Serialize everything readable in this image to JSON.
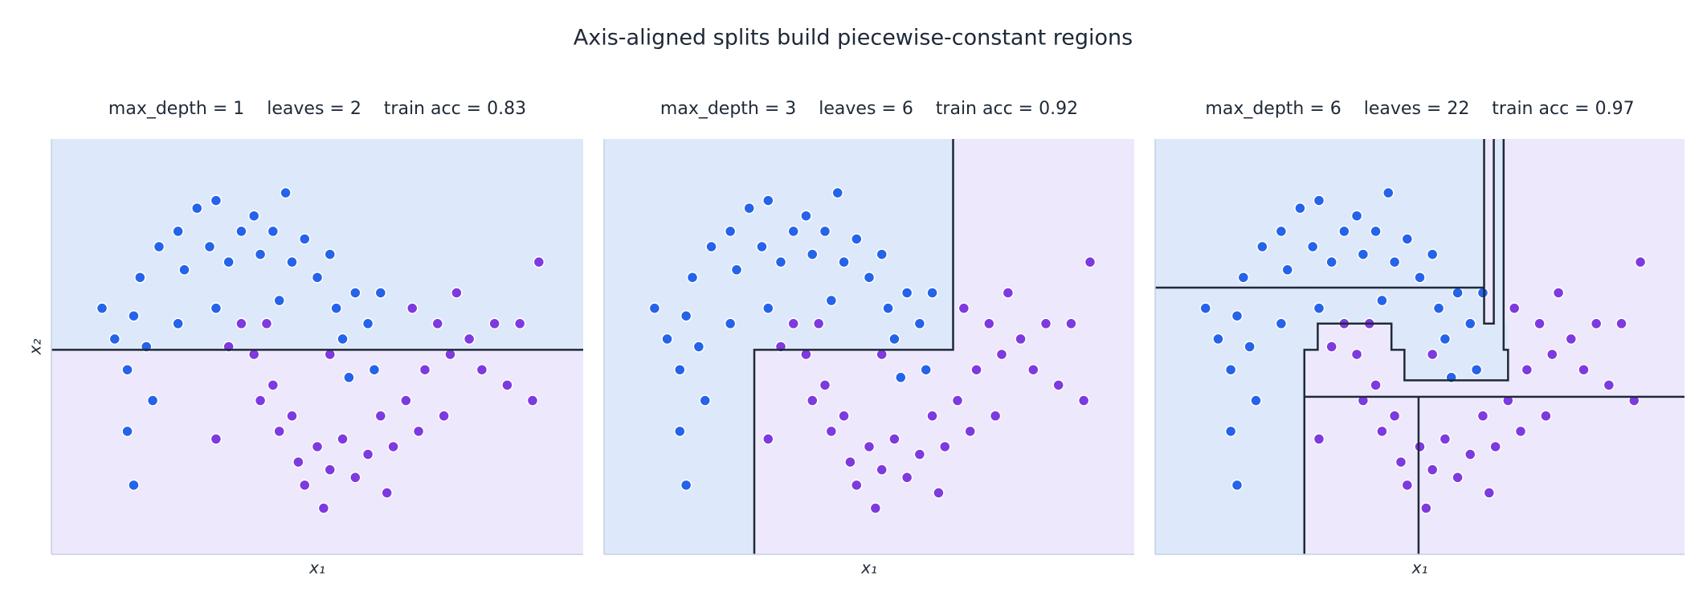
{
  "title": "Axis-aligned splits build piecewise-constant regions",
  "chart_data": [
    {
      "type": "scatter",
      "title": "max_depth = 1    leaves = 2    train acc = 0.83",
      "xlabel": "x₁",
      "ylabel": "x₂",
      "xlim": [
        -1.6,
        2.6
      ],
      "ylim": [
        -1.1,
        1.6
      ],
      "background": "#ede8fb",
      "regions": [
        {
          "x": [
            -1.6,
            2.6
          ],
          "y": [
            0.23,
            1.6
          ],
          "color": "#dde9fa"
        }
      ],
      "splits": [
        {
          "x": [
            -1.6,
            2.6
          ],
          "y": [
            0.23,
            0.23
          ]
        }
      ],
      "series": [
        {
          "color": "#2563eb",
          "x": [
            -1.2,
            -1.1,
            -1.0,
            -0.95,
            -0.9,
            -0.85,
            -0.8,
            -1.0,
            -0.75,
            -0.6,
            -0.55,
            -0.45,
            -0.35,
            -0.3,
            -0.2,
            -0.1,
            0.0,
            0.05,
            0.15,
            0.25,
            0.3,
            0.4,
            0.5,
            0.6,
            0.65,
            0.7,
            0.8,
            0.9,
            0.95,
            1.0,
            0.75,
            -0.6,
            -0.3,
            0.2,
            -0.95
          ],
          "values": [
            0.5,
            0.3,
            0.1,
            0.45,
            0.7,
            0.25,
            -0.1,
            -0.3,
            0.9,
            1.0,
            0.75,
            1.15,
            0.9,
            1.2,
            0.8,
            1.0,
            1.1,
            0.85,
            1.0,
            1.25,
            0.8,
            0.95,
            0.7,
            0.85,
            0.5,
            0.3,
            0.6,
            0.4,
            0.1,
            0.6,
            0.05,
            0.4,
            0.5,
            0.55,
            -0.65
          ]
        },
        {
          "color": "#7e3ae0",
          "x": [
            -0.2,
            -0.1,
            0.0,
            0.05,
            0.15,
            0.2,
            0.3,
            0.35,
            0.4,
            0.5,
            0.55,
            0.6,
            0.7,
            0.8,
            0.9,
            1.0,
            1.05,
            1.1,
            1.2,
            1.3,
            1.35,
            1.45,
            1.55,
            1.6,
            1.7,
            1.8,
            1.9,
            2.0,
            2.1,
            2.2,
            1.25,
            1.5,
            -0.3,
            0.6,
            2.25,
            0.1
          ],
          "values": [
            0.25,
            0.4,
            0.2,
            -0.1,
            0.0,
            -0.3,
            -0.2,
            -0.5,
            -0.65,
            -0.4,
            -0.8,
            -0.55,
            -0.35,
            -0.6,
            -0.45,
            -0.2,
            -0.7,
            -0.4,
            -0.1,
            -0.3,
            0.1,
            0.4,
            0.2,
            0.6,
            0.3,
            0.1,
            0.4,
            0.0,
            0.4,
            -0.1,
            0.5,
            -0.2,
            -0.35,
            0.2,
            0.8,
            0.4
          ]
        }
      ]
    },
    {
      "type": "scatter",
      "title": "max_depth = 3    leaves = 6    train acc = 0.92",
      "xlabel": "x₁",
      "xlim": [
        -1.6,
        2.6
      ],
      "ylim": [
        -1.1,
        1.6
      ],
      "background": "#ede8fb",
      "regions": [
        {
          "x": [
            -1.6,
            -0.41
          ],
          "y": [
            -1.1,
            1.6
          ],
          "color": "#dde9fa"
        },
        {
          "x": [
            -0.41,
            1.165
          ],
          "y": [
            0.23,
            1.6
          ],
          "color": "#dde9fa"
        }
      ],
      "splits": [
        {
          "x": [
            1.165,
            1.165,
            -0.41,
            -0.41
          ],
          "y": [
            1.6,
            0.23,
            0.23,
            -1.1
          ]
        }
      ],
      "series": [
        {
          "color": "#2563eb",
          "x": [
            -1.2,
            -1.1,
            -1.0,
            -0.95,
            -0.9,
            -0.85,
            -0.8,
            -1.0,
            -0.75,
            -0.6,
            -0.55,
            -0.45,
            -0.35,
            -0.3,
            -0.2,
            -0.1,
            0.0,
            0.05,
            0.15,
            0.25,
            0.3,
            0.4,
            0.5,
            0.6,
            0.65,
            0.7,
            0.8,
            0.9,
            0.95,
            1.0,
            0.75,
            -0.6,
            -0.3,
            0.2,
            -0.95
          ],
          "values": [
            0.5,
            0.3,
            0.1,
            0.45,
            0.7,
            0.25,
            -0.1,
            -0.3,
            0.9,
            1.0,
            0.75,
            1.15,
            0.9,
            1.2,
            0.8,
            1.0,
            1.1,
            0.85,
            1.0,
            1.25,
            0.8,
            0.95,
            0.7,
            0.85,
            0.5,
            0.3,
            0.6,
            0.4,
            0.1,
            0.6,
            0.05,
            0.4,
            0.5,
            0.55,
            -0.65
          ]
        },
        {
          "color": "#7e3ae0",
          "x": [
            -0.2,
            -0.1,
            0.0,
            0.05,
            0.15,
            0.2,
            0.3,
            0.35,
            0.4,
            0.5,
            0.55,
            0.6,
            0.7,
            0.8,
            0.9,
            1.0,
            1.05,
            1.1,
            1.2,
            1.3,
            1.35,
            1.45,
            1.55,
            1.6,
            1.7,
            1.8,
            1.9,
            2.0,
            2.1,
            2.2,
            1.25,
            1.5,
            -0.3,
            0.6,
            2.25,
            0.1
          ],
          "values": [
            0.25,
            0.4,
            0.2,
            -0.1,
            0.0,
            -0.3,
            -0.2,
            -0.5,
            -0.65,
            -0.4,
            -0.8,
            -0.55,
            -0.35,
            -0.6,
            -0.45,
            -0.2,
            -0.7,
            -0.4,
            -0.1,
            -0.3,
            0.1,
            0.4,
            0.2,
            0.6,
            0.3,
            0.1,
            0.4,
            0.0,
            0.4,
            -0.1,
            0.5,
            -0.2,
            -0.35,
            0.2,
            0.8,
            0.4
          ]
        }
      ]
    },
    {
      "type": "scatter",
      "title": "max_depth = 6    leaves = 22    train acc = 0.97",
      "xlabel": "x₁",
      "xlim": [
        -1.6,
        2.6
      ],
      "ylim": [
        -1.1,
        1.6
      ],
      "background": "#ede8fb",
      "regions": [
        {
          "x": [
            -1.6,
            -0.416
          ],
          "y": [
            -1.1,
            1.6
          ],
          "color": "#dde9fa"
        },
        {
          "x": [
            -0.416,
            1.01
          ],
          "y": [
            0.4,
            1.6
          ],
          "color": "#dde9fa"
        },
        {
          "x": [
            1.087,
            1.165
          ],
          "y": [
            0.4,
            1.6
          ],
          "color": "#dde9fa"
        },
        {
          "x": [
            -0.416,
            -0.31
          ],
          "y": [
            0.23,
            0.4
          ],
          "color": "#dde9fa"
        },
        {
          "x": [
            0.275,
            1.2
          ],
          "y": [
            0.23,
            0.4
          ],
          "color": "#dde9fa"
        },
        {
          "x": [
            0.378,
            1.2
          ],
          "y": [
            0.031,
            0.23
          ],
          "color": "#dde9fa"
        }
      ],
      "splits": [
        {
          "x": [
            -1.6,
            1.01
          ],
          "y": [
            0.634,
            0.634
          ]
        },
        {
          "x": [
            1.01,
            1.01,
            1.087,
            1.087
          ],
          "y": [
            1.6,
            0.4,
            0.4,
            1.6
          ]
        },
        {
          "x": [
            1.165,
            1.165,
            1.2,
            1.2,
            0.378,
            0.378,
            0.275,
            0.275,
            -0.31,
            -0.31,
            -0.416,
            -0.416
          ],
          "y": [
            1.6,
            0.23,
            0.23,
            0.031,
            0.031,
            0.23,
            0.23,
            0.4,
            0.4,
            0.23,
            0.23,
            -1.1
          ]
        },
        {
          "x": [
            -0.416,
            2.6
          ],
          "y": [
            -0.076,
            -0.076
          ]
        },
        {
          "x": [
            0.49,
            0.49
          ],
          "y": [
            -0.076,
            -1.1
          ]
        }
      ],
      "series": [
        {
          "color": "#2563eb",
          "x": [
            -1.2,
            -1.1,
            -1.0,
            -0.95,
            -0.9,
            -0.85,
            -0.8,
            -1.0,
            -0.75,
            -0.6,
            -0.55,
            -0.45,
            -0.35,
            -0.3,
            -0.2,
            -0.1,
            0.0,
            0.05,
            0.15,
            0.25,
            0.3,
            0.4,
            0.5,
            0.6,
            0.65,
            0.7,
            0.8,
            0.9,
            0.95,
            1.0,
            0.75,
            -0.6,
            -0.3,
            0.2,
            -0.95
          ],
          "values": [
            0.5,
            0.3,
            0.1,
            0.45,
            0.7,
            0.25,
            -0.1,
            -0.3,
            0.9,
            1.0,
            0.75,
            1.15,
            0.9,
            1.2,
            0.8,
            1.0,
            1.1,
            0.85,
            1.0,
            1.25,
            0.8,
            0.95,
            0.7,
            0.85,
            0.5,
            0.3,
            0.6,
            0.4,
            0.1,
            0.6,
            0.05,
            0.4,
            0.5,
            0.55,
            -0.65
          ]
        },
        {
          "color": "#7e3ae0",
          "x": [
            -0.2,
            -0.1,
            0.0,
            0.05,
            0.15,
            0.2,
            0.3,
            0.35,
            0.4,
            0.5,
            0.55,
            0.6,
            0.7,
            0.8,
            0.9,
            1.0,
            1.05,
            1.1,
            1.2,
            1.3,
            1.35,
            1.45,
            1.55,
            1.6,
            1.7,
            1.8,
            1.9,
            2.0,
            2.1,
            2.2,
            1.25,
            1.5,
            -0.3,
            0.6,
            2.25,
            0.1
          ],
          "values": [
            0.25,
            0.4,
            0.2,
            -0.1,
            0.0,
            -0.3,
            -0.2,
            -0.5,
            -0.65,
            -0.4,
            -0.8,
            -0.55,
            -0.35,
            -0.6,
            -0.45,
            -0.2,
            -0.7,
            -0.4,
            -0.1,
            -0.3,
            0.1,
            0.4,
            0.2,
            0.6,
            0.3,
            0.1,
            0.4,
            0.0,
            0.4,
            -0.1,
            0.5,
            -0.2,
            -0.35,
            0.2,
            0.8,
            0.4
          ]
        }
      ]
    }
  ]
}
